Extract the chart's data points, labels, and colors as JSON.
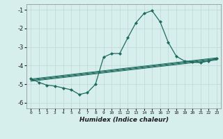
{
  "xlabel": "Humidex (Indice chaleur)",
  "bg_color": "#d6efec",
  "grid_color": "#c2dbd8",
  "line_color": "#1e6b5e",
  "xlim": [
    -0.5,
    23.5
  ],
  "ylim": [
    -6.3,
    -0.7
  ],
  "yticks": [
    -6,
    -5,
    -4,
    -3,
    -2,
    -1
  ],
  "xticks": [
    0,
    1,
    2,
    3,
    4,
    5,
    6,
    7,
    8,
    9,
    10,
    11,
    12,
    13,
    14,
    15,
    16,
    17,
    18,
    19,
    20,
    21,
    22,
    23
  ],
  "main_x": [
    0,
    1,
    2,
    3,
    4,
    5,
    6,
    7,
    8,
    9,
    10,
    11,
    12,
    13,
    14,
    15,
    16,
    17,
    18,
    19,
    20,
    21,
    22,
    23
  ],
  "main_y": [
    -4.7,
    -4.9,
    -5.05,
    -5.1,
    -5.2,
    -5.3,
    -5.55,
    -5.45,
    -5.0,
    -3.55,
    -3.35,
    -3.35,
    -2.5,
    -1.7,
    -1.2,
    -1.05,
    -1.65,
    -2.75,
    -3.5,
    -3.75,
    -3.8,
    -3.85,
    -3.75,
    -3.6
  ],
  "flat_lines": [
    {
      "x": [
        0,
        23
      ],
      "y": [
        -4.72,
        -3.58
      ]
    },
    {
      "x": [
        0,
        23
      ],
      "y": [
        -4.76,
        -3.62
      ]
    },
    {
      "x": [
        0,
        23
      ],
      "y": [
        -4.8,
        -3.66
      ]
    },
    {
      "x": [
        0,
        23
      ],
      "y": [
        -4.84,
        -3.7
      ]
    }
  ]
}
